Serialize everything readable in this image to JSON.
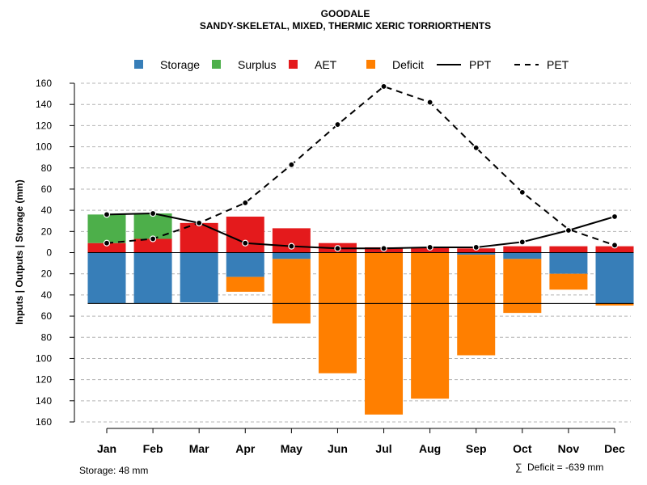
{
  "chart_data": {
    "type": "bar",
    "title": "GOODALE",
    "subtitle": "SANDY-SKELETAL, MIXED, THERMIC XERIC TORRIORTHENTS",
    "ylabel": "Inputs | Outputs | Storage    (mm)",
    "xlabel": "",
    "ylim": [
      -160,
      160
    ],
    "yticks": [
      160,
      140,
      120,
      100,
      80,
      60,
      40,
      20,
      0,
      20,
      40,
      60,
      80,
      100,
      120,
      140,
      160
    ],
    "grid": true,
    "legend_position": "top",
    "categories": [
      "Jan",
      "Feb",
      "Mar",
      "Apr",
      "May",
      "Jun",
      "Jul",
      "Aug",
      "Sep",
      "Oct",
      "Nov",
      "Dec"
    ],
    "series": [
      {
        "name": "Storage",
        "kind": "bar-below",
        "color": "#377EB8",
        "values": [
          48,
          48,
          47,
          23,
          6,
          0,
          0,
          0,
          2,
          6,
          20,
          48
        ]
      },
      {
        "name": "Surplus",
        "kind": "bar-above",
        "color": "#4DAF4A",
        "values": [
          27,
          24,
          0,
          0,
          0,
          0,
          0,
          0,
          0,
          0,
          0,
          0
        ]
      },
      {
        "name": "AET",
        "kind": "bar-above",
        "color": "#E41A1C",
        "values": [
          9,
          13,
          28,
          34,
          23,
          9,
          5,
          5,
          4,
          6,
          6,
          6
        ]
      },
      {
        "name": "Deficit",
        "kind": "bar-below",
        "color": "#FF7F00",
        "values": [
          0,
          0,
          0,
          14,
          61,
          114,
          153,
          138,
          95,
          51,
          15,
          2
        ]
      },
      {
        "name": "PPT",
        "kind": "line",
        "style": "solid",
        "values": [
          36,
          37,
          28,
          9,
          6,
          4,
          4,
          5,
          5,
          10,
          21,
          34
        ]
      },
      {
        "name": "PET",
        "kind": "line",
        "style": "dashed",
        "values": [
          9,
          13,
          28,
          47,
          83,
          121,
          157,
          142,
          99,
          57,
          22,
          7
        ]
      }
    ],
    "storage_capacity": 48,
    "footnotes": {
      "storage": "Storage: 48 mm",
      "deficit_symbol": "∑",
      "deficit": "Deficit = -639 mm"
    },
    "colors": {
      "line": "#000000",
      "grid": "#b4b4b4"
    }
  }
}
